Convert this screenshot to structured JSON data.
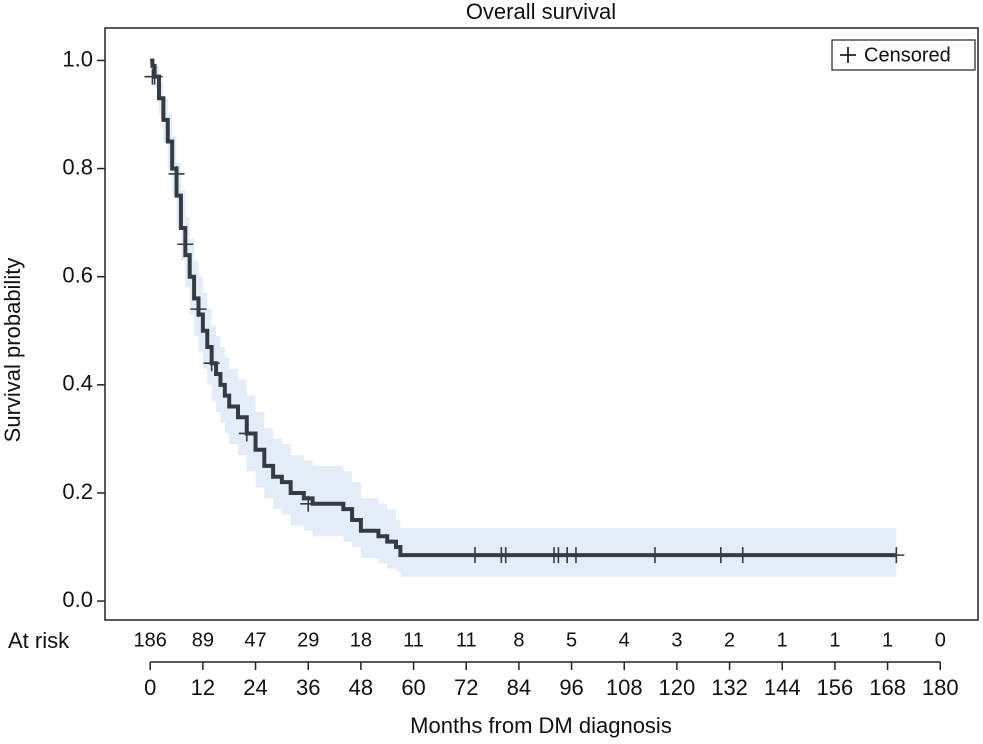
{
  "chart_data": {
    "type": "km",
    "title": "Overall survival",
    "x_label": "Months from DM diagnosis",
    "y_label": "Survival probability",
    "x": [
      0,
      0.5,
      1,
      2,
      3,
      4,
      5,
      6,
      7,
      8,
      9,
      10,
      11,
      12,
      13,
      14,
      15,
      16,
      17,
      18,
      20,
      22,
      24,
      26,
      28,
      30,
      32,
      35,
      37,
      44,
      46,
      48,
      52,
      54,
      56,
      57,
      170
    ],
    "values": [
      1.0,
      0.99,
      0.97,
      0.93,
      0.89,
      0.85,
      0.8,
      0.75,
      0.69,
      0.64,
      0.6,
      0.56,
      0.53,
      0.5,
      0.47,
      0.44,
      0.42,
      0.4,
      0.38,
      0.36,
      0.34,
      0.31,
      0.28,
      0.25,
      0.23,
      0.22,
      0.2,
      0.19,
      0.18,
      0.17,
      0.15,
      0.13,
      0.12,
      0.11,
      0.1,
      0.085,
      0.085
    ],
    "ci_lower": [
      1.0,
      0.97,
      0.95,
      0.9,
      0.85,
      0.8,
      0.75,
      0.69,
      0.63,
      0.58,
      0.53,
      0.49,
      0.46,
      0.43,
      0.4,
      0.37,
      0.35,
      0.33,
      0.31,
      0.29,
      0.27,
      0.24,
      0.21,
      0.19,
      0.17,
      0.16,
      0.14,
      0.13,
      0.12,
      0.11,
      0.1,
      0.08,
      0.07,
      0.06,
      0.055,
      0.045,
      0.045
    ],
    "ci_upper": [
      1.0,
      1.0,
      0.99,
      0.96,
      0.93,
      0.9,
      0.86,
      0.81,
      0.76,
      0.71,
      0.67,
      0.63,
      0.6,
      0.57,
      0.54,
      0.51,
      0.49,
      0.47,
      0.45,
      0.43,
      0.41,
      0.38,
      0.35,
      0.32,
      0.3,
      0.29,
      0.27,
      0.26,
      0.25,
      0.24,
      0.22,
      0.19,
      0.18,
      0.17,
      0.15,
      0.135,
      0.135
    ],
    "line_color": "#353b42",
    "band_color": "#e4ecf8",
    "censored": {
      "label": "Censored",
      "x": [
        0.5,
        1,
        6,
        8,
        11,
        14,
        22,
        36,
        74,
        80,
        81,
        92,
        93,
        95,
        97,
        115,
        130,
        135,
        170
      ],
      "values": [
        0.97,
        0.97,
        0.79,
        0.66,
        0.54,
        0.44,
        0.31,
        0.18,
        0.085,
        0.085,
        0.085,
        0.085,
        0.085,
        0.085,
        0.085,
        0.085,
        0.085,
        0.085,
        0.085
      ]
    },
    "xlim": [
      -10.3,
      188.6
    ],
    "ylim": [
      -0.035,
      1.06
    ],
    "xticks": [
      0,
      12,
      24,
      36,
      48,
      60,
      72,
      84,
      96,
      108,
      120,
      132,
      144,
      156,
      168,
      180
    ],
    "yticks": [
      {
        "value": 0,
        "label": "0.0"
      },
      0.2,
      0.4,
      0.6,
      0.8,
      {
        "value": 1,
        "label": "1.0"
      }
    ],
    "at_risk_label": "At risk",
    "at_risk": [
      186,
      89,
      47,
      29,
      18,
      11,
      11,
      8,
      5,
      4,
      3,
      2,
      1,
      1,
      1,
      0
    ]
  }
}
